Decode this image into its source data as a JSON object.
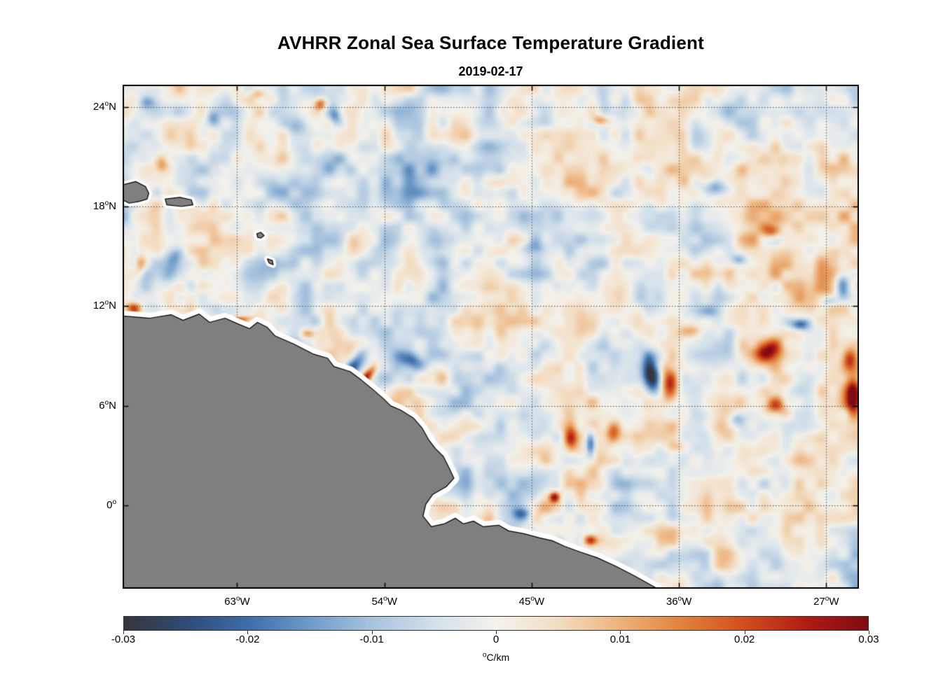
{
  "chart_data": {
    "type": "heatmap",
    "title": "AVHRR Zonal Sea Surface Temperature Gradient",
    "subtitle": "2019-02-17",
    "map": {
      "lon_min": -70,
      "lon_max": -25,
      "lat_min": -5,
      "lat_max": 25.33
    },
    "x_ticks": [
      {
        "lon": -63,
        "num": "63",
        "hemi": "W"
      },
      {
        "lon": -54,
        "num": "54",
        "hemi": "W"
      },
      {
        "lon": -45,
        "num": "45",
        "hemi": "W"
      },
      {
        "lon": -36,
        "num": "36",
        "hemi": "W"
      },
      {
        "lon": -27,
        "num": "27",
        "hemi": "W"
      }
    ],
    "y_ticks": [
      {
        "lat": 24,
        "num": "24",
        "hemi": "N"
      },
      {
        "lat": 18,
        "num": "18",
        "hemi": "N"
      },
      {
        "lat": 12,
        "num": "12",
        "hemi": "N"
      },
      {
        "lat": 6,
        "num": "6",
        "hemi": "N"
      },
      {
        "lat": 0,
        "num": "0",
        "hemi": ""
      }
    ],
    "colorbar": {
      "vmin": -0.03,
      "vmax": 0.03,
      "tick_values": [
        -0.03,
        -0.02,
        -0.01,
        0,
        0.01,
        0.02,
        0.03
      ],
      "tick_labels": [
        "-0.03",
        "-0.02",
        "-0.01",
        "0",
        "0.01",
        "0.02",
        "0.03"
      ],
      "unit_sup": "o",
      "unit_rest": "C/km"
    },
    "colormap_stops": [
      [
        0.0,
        "#35353b"
      ],
      [
        0.083,
        "#2f4b75"
      ],
      [
        0.167,
        "#3d6da8"
      ],
      [
        0.25,
        "#6f9bc9"
      ],
      [
        0.333,
        "#a7c3de"
      ],
      [
        0.417,
        "#d3e0ea"
      ],
      [
        0.5,
        "#f3f2ec"
      ],
      [
        0.583,
        "#f3ddc3"
      ],
      [
        0.667,
        "#edb27c"
      ],
      [
        0.75,
        "#e0823c"
      ],
      [
        0.833,
        "#d14f1e"
      ],
      [
        0.917,
        "#b01c14"
      ],
      [
        1.0,
        "#7d0b12"
      ]
    ],
    "land_color": "#7f7f7f",
    "coast_halo_color": "#ffffff",
    "grid_color": "#4a4a4a",
    "noise": {
      "seed": 7,
      "base": -0.001,
      "octaves": [
        [
          1.6,
          0.008
        ],
        [
          0.7,
          0.005
        ]
      ]
    },
    "features": [
      [
        -69.3,
        11.85,
        0.022,
        0.45,
        0.35,
        0
      ],
      [
        -65.4,
        11.05,
        -0.03,
        0.9,
        0.3,
        0
      ],
      [
        -63.1,
        11.15,
        0.03,
        0.8,
        0.25,
        0
      ],
      [
        -62.2,
        10.9,
        -0.018,
        0.3,
        0.22,
        0
      ],
      [
        -58.7,
        10.35,
        0.015,
        0.45,
        0.3,
        0
      ],
      [
        -55.9,
        8.4,
        -0.022,
        0.45,
        1.1,
        -35
      ],
      [
        -55.25,
        7.55,
        0.034,
        0.28,
        0.9,
        -40
      ],
      [
        -53.9,
        6.1,
        0.02,
        0.3,
        0.22,
        0
      ],
      [
        -52.4,
        8.8,
        -0.018,
        0.9,
        0.5,
        -20
      ],
      [
        -37.7,
        7.9,
        -0.028,
        0.45,
        1.0,
        10
      ],
      [
        -36.6,
        7.3,
        0.026,
        0.55,
        1.1,
        0
      ],
      [
        -30.6,
        9.3,
        0.022,
        0.8,
        0.6,
        30
      ],
      [
        -28.6,
        10.9,
        -0.022,
        0.55,
        0.35,
        0
      ],
      [
        -26.0,
        13.2,
        -0.026,
        0.45,
        0.75,
        0
      ],
      [
        -25.4,
        6.6,
        0.028,
        0.4,
        1.0,
        0
      ],
      [
        -25.6,
        8.8,
        0.018,
        0.4,
        0.6,
        0
      ],
      [
        -41.4,
        3.7,
        -0.027,
        0.32,
        0.85,
        0
      ],
      [
        -42.6,
        4.0,
        0.02,
        0.4,
        0.8,
        0
      ],
      [
        -40.0,
        4.3,
        0.017,
        0.45,
        0.6,
        0
      ],
      [
        -43.6,
        0.5,
        0.031,
        0.3,
        0.3,
        0
      ],
      [
        -41.4,
        -2.1,
        0.026,
        0.4,
        0.3,
        0
      ],
      [
        -45.6,
        -0.5,
        -0.015,
        0.55,
        0.35,
        0
      ],
      [
        -33.8,
        19.1,
        -0.018,
        0.9,
        0.5,
        0
      ],
      [
        -57.9,
        24.2,
        0.022,
        0.4,
        0.35,
        0
      ],
      [
        -59.4,
        22.9,
        -0.013,
        0.7,
        0.5,
        0
      ],
      [
        -30.3,
        16.5,
        0.016,
        0.5,
        0.4,
        0
      ],
      [
        -40.8,
        23.2,
        0.015,
        0.6,
        0.3,
        0
      ],
      [
        -26.8,
        12.3,
        -0.015,
        0.5,
        0.3,
        0
      ],
      [
        -32.3,
        14.8,
        -0.016,
        0.5,
        0.35,
        0
      ],
      [
        -30.1,
        6.0,
        0.016,
        0.6,
        0.5,
        0
      ],
      [
        -32.5,
        5.2,
        -0.012,
        0.5,
        0.4,
        0
      ],
      [
        -36.2,
        3.5,
        0.012,
        0.8,
        0.4,
        0
      ],
      [
        -34.2,
        11.7,
        -0.012,
        0.6,
        0.4,
        0
      ],
      [
        -35.2,
        10.5,
        0.012,
        0.7,
        0.4,
        0
      ],
      [
        -68.5,
        24.3,
        -0.012,
        0.5,
        0.4,
        0
      ],
      [
        -64.5,
        23.3,
        -0.012,
        0.4,
        0.5,
        20
      ],
      [
        -61.7,
        24.8,
        0.012,
        0.45,
        0.3,
        0
      ],
      [
        -57.0,
        23.5,
        -0.014,
        0.35,
        0.5,
        0
      ],
      [
        -67.6,
        20.6,
        0.012,
        0.4,
        0.5,
        0
      ],
      [
        -66.8,
        14.9,
        -0.01,
        0.5,
        0.6,
        0
      ],
      [
        -68.9,
        14.5,
        0.014,
        0.35,
        0.6,
        0
      ],
      [
        -44.9,
        15.5,
        -0.01,
        0.8,
        0.4,
        0
      ],
      [
        -28.5,
        15.0,
        0.007,
        3.5,
        5.0,
        0
      ],
      [
        -52.0,
        18.0,
        -0.005,
        6.0,
        4.5,
        0
      ]
    ],
    "coastline": [
      [
        -70,
        11.41
      ],
      [
        -68.33,
        11.28
      ],
      [
        -67.04,
        11.49
      ],
      [
        -66.31,
        11.15
      ],
      [
        -65.32,
        11.53
      ],
      [
        -64.68,
        11.03
      ],
      [
        -63.74,
        11.28
      ],
      [
        -62.96,
        10.94
      ],
      [
        -62.24,
        10.65
      ],
      [
        -61.76,
        11.03
      ],
      [
        -61.16,
        10.73
      ],
      [
        -60.69,
        10.22
      ],
      [
        -59.53,
        9.72
      ],
      [
        -58.37,
        9.13
      ],
      [
        -57.47,
        8.87
      ],
      [
        -57.09,
        8.37
      ],
      [
        -56.1,
        8.07
      ],
      [
        -55.41,
        7.56
      ],
      [
        -54.73,
        7.01
      ],
      [
        -54.04,
        6.42
      ],
      [
        -53.61,
        6.0
      ],
      [
        -53.01,
        5.75
      ],
      [
        -52.24,
        5.28
      ],
      [
        -51.68,
        4.65
      ],
      [
        -51.3,
        3.97
      ],
      [
        -50.87,
        3.42
      ],
      [
        -50.4,
        2.96
      ],
      [
        -50.05,
        2.28
      ],
      [
        -49.75,
        1.65
      ],
      [
        -50.22,
        1.14
      ],
      [
        -51.04,
        0.68
      ],
      [
        -51.47,
        0.08
      ],
      [
        -51.64,
        -0.63
      ],
      [
        -51.13,
        -1.27
      ],
      [
        -50.36,
        -1.1
      ],
      [
        -49.67,
        -0.76
      ],
      [
        -49.16,
        -1.1
      ],
      [
        -48.56,
        -0.93
      ],
      [
        -47.96,
        -1.27
      ],
      [
        -47.01,
        -1.18
      ],
      [
        -46.41,
        -1.52
      ],
      [
        -45.47,
        -1.69
      ],
      [
        -44.52,
        -1.94
      ],
      [
        -43.75,
        -2.11
      ],
      [
        -42.98,
        -2.45
      ],
      [
        -42.04,
        -2.79
      ],
      [
        -41.01,
        -3.13
      ],
      [
        -39.89,
        -3.63
      ],
      [
        -38.73,
        -4.22
      ],
      [
        -37.31,
        -5.0
      ]
    ],
    "coastline_close": [
      [
        -70,
        -5.0
      ]
    ],
    "islands": [
      [
        [
          -70,
          19.3
        ],
        [
          -69.2,
          19.5
        ],
        [
          -68.6,
          19.2
        ],
        [
          -68.4,
          18.8
        ],
        [
          -68.5,
          18.45
        ],
        [
          -69.0,
          18.3
        ],
        [
          -69.6,
          18.2
        ],
        [
          -70,
          18.4
        ]
      ],
      [
        [
          -67.4,
          18.45
        ],
        [
          -66.5,
          18.55
        ],
        [
          -65.8,
          18.4
        ],
        [
          -65.7,
          18.1
        ],
        [
          -66.4,
          18.0
        ],
        [
          -67.3,
          18.1
        ]
      ],
      [
        [
          -61.8,
          16.35
        ],
        [
          -61.55,
          16.45
        ],
        [
          -61.35,
          16.25
        ],
        [
          -61.55,
          16.1
        ],
        [
          -61.75,
          16.15
        ]
      ],
      [
        [
          -61.15,
          14.85
        ],
        [
          -60.85,
          14.75
        ],
        [
          -60.8,
          14.5
        ],
        [
          -61.05,
          14.6
        ]
      ]
    ]
  }
}
